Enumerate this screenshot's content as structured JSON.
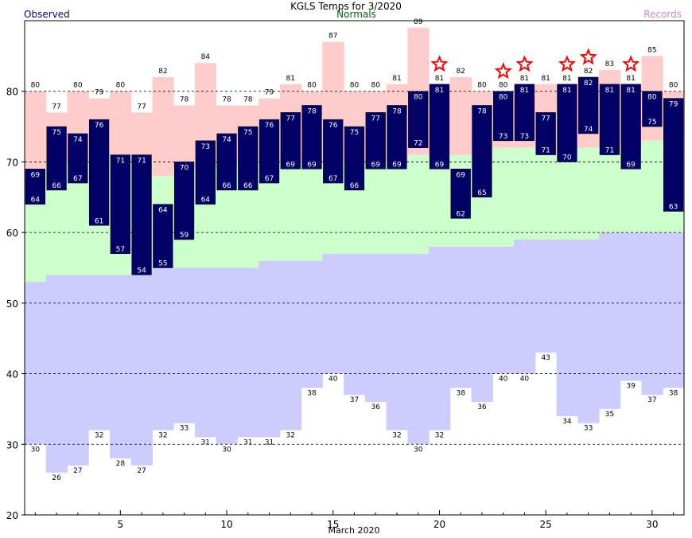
{
  "header": {
    "title": "KGLS Temps for 3/2020",
    "observed_label": "Observed",
    "normals_label": "Normals",
    "records_label": "Records"
  },
  "colors": {
    "observed_bar": "#000066",
    "record_band": "#ccccff",
    "normal_band": "#ccffcc",
    "record_high_band": "#ffcccc",
    "star": "#ff0000"
  },
  "chart_data": {
    "type": "bar",
    "title": "KGLS Temps for 3/2020",
    "xlabel": "March 2020",
    "ylabel": "",
    "ylim": [
      20,
      90
    ],
    "xlim": [
      0.5,
      31.5
    ],
    "y_ticks": [
      20,
      30,
      40,
      50,
      60,
      70,
      80
    ],
    "x_ticks": [
      5,
      10,
      15,
      20,
      25,
      30
    ],
    "grid": true,
    "days": [
      1,
      2,
      3,
      4,
      5,
      6,
      7,
      8,
      9,
      10,
      11,
      12,
      13,
      14,
      15,
      16,
      17,
      18,
      19,
      20,
      21,
      22,
      23,
      24,
      25,
      26,
      27,
      28,
      29,
      30,
      31
    ],
    "series": [
      {
        "name": "Observed",
        "high": [
          69,
          75,
          74,
          76,
          71,
          71,
          64,
          70,
          73,
          74,
          75,
          76,
          77,
          78,
          76,
          75,
          77,
          78,
          80,
          81,
          69,
          78,
          80,
          81,
          77,
          81,
          82,
          81,
          81,
          80,
          79
        ],
        "low": [
          64,
          66,
          67,
          61,
          57,
          54,
          55,
          59,
          64,
          66,
          66,
          67,
          69,
          69,
          67,
          66,
          69,
          69,
          72,
          69,
          62,
          65,
          73,
          73,
          71,
          70,
          74,
          71,
          69,
          75,
          63
        ]
      },
      {
        "name": "Normals",
        "high": [
          69,
          70,
          70,
          70,
          71,
          71,
          68,
          69,
          69,
          69,
          70,
          70,
          70,
          70,
          70,
          70,
          70,
          70,
          71,
          71,
          71,
          71,
          72,
          72,
          71,
          71,
          72,
          72,
          72,
          73,
          73
        ],
        "low": [
          53,
          54,
          54,
          54,
          54,
          54,
          55,
          55,
          55,
          55,
          55,
          56,
          56,
          56,
          57,
          57,
          57,
          57,
          57,
          58,
          58,
          58,
          58,
          59,
          59,
          59,
          59,
          60,
          60,
          60,
          60
        ]
      },
      {
        "name": "Records",
        "high": [
          80,
          77,
          80,
          79,
          80,
          77,
          82,
          78,
          84,
          78,
          78,
          79,
          81,
          80,
          87,
          80,
          80,
          81,
          89,
          81,
          82,
          80,
          80,
          81,
          81,
          81,
          82,
          83,
          81,
          85,
          80
        ],
        "low": [
          30,
          26,
          27,
          32,
          28,
          27,
          32,
          33,
          31,
          30,
          31,
          31,
          32,
          38,
          40,
          37,
          36,
          32,
          30,
          32,
          38,
          36,
          40,
          40,
          43,
          34,
          33,
          35,
          39,
          37,
          38
        ]
      }
    ],
    "record_set_days": [
      20,
      23,
      24,
      26,
      27,
      29
    ]
  }
}
